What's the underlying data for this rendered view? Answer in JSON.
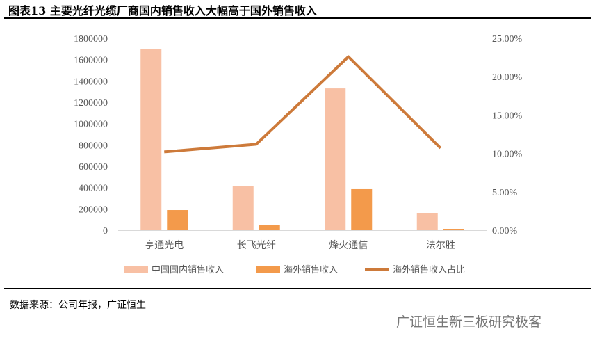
{
  "title": "图表13 主要光纤光缆厂商国内销售收入大幅高于国外销售收入",
  "source": "数据来源：公司年报，广证恒生",
  "watermark": "广证恒生新三板研究极客",
  "colors": {
    "domestic": "#F8C0A4",
    "overseas": "#F39A4B",
    "ratio": "#CD7A3A"
  },
  "chart_data": {
    "type": "bar+line",
    "categories": [
      "亨通光电",
      "长飞光纤",
      "烽火通信",
      "法尔胜"
    ],
    "series": [
      {
        "name": "中国国内销售收入",
        "type": "bar",
        "axis": "left",
        "values": [
          1700000,
          411000,
          1330000,
          163000
        ]
      },
      {
        "name": "海外销售收入",
        "type": "bar",
        "axis": "left",
        "values": [
          189000,
          46000,
          385000,
          13000
        ]
      },
      {
        "name": "海外销售收入占比",
        "type": "line",
        "axis": "right",
        "values": [
          10.2,
          11.2,
          22.6,
          10.7
        ]
      }
    ],
    "left_axis": {
      "ylim": [
        0,
        1800000
      ],
      "ticks": [
        "0",
        "200000",
        "400000",
        "600000",
        "800000",
        "1000000",
        "1200000",
        "1400000",
        "1600000",
        "1800000"
      ]
    },
    "right_axis": {
      "ylim": [
        0,
        25
      ],
      "ticks": [
        "0.00%",
        "5.00%",
        "10.00%",
        "15.00%",
        "20.00%",
        "25.00%"
      ]
    },
    "grid": false,
    "legend": "bottom"
  }
}
